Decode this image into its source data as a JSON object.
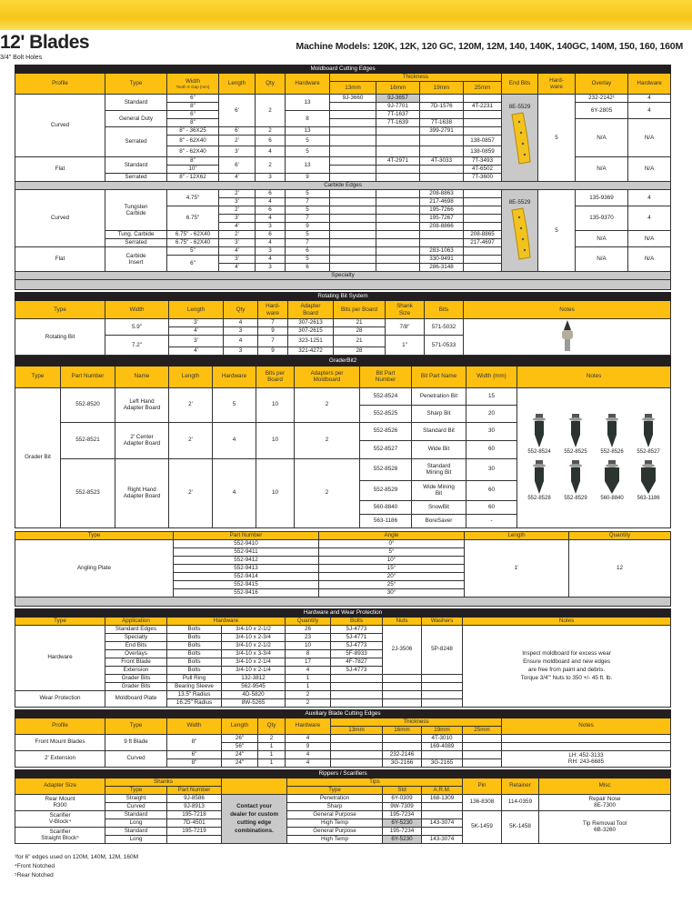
{
  "header": {
    "title": "12' Blades",
    "subtitle": "3/4\" Bolt Holes",
    "models": "Machine Models: 120K, 12K, 120 GC, 120M, 12M, 140, 140K, 140GC, 140M, 150, 160, 160M"
  },
  "colors": {
    "accent": "#fdc010",
    "bar": "#231f20",
    "band": "#c9c9c9"
  },
  "moldboard": {
    "title": "Moldboard Cutting Edges",
    "headers": [
      "Profile",
      "Type",
      "Width",
      "Tooth X Gap (mm)",
      "Length",
      "Qty",
      "Hardware",
      "Thickness",
      "13mm",
      "16mm",
      "19mm",
      "25mm",
      "End Bits",
      "Hard-\nware",
      "Overlay",
      "Hardware"
    ],
    "rows": [
      [
        "Curved",
        "Standard",
        "6\"",
        "6'",
        "2",
        "13",
        "9J-3660",
        "9J-3657",
        "",
        "",
        "8E-5529",
        "5",
        "232-2142¹",
        "4"
      ],
      [
        "8\"",
        "",
        "9J-7701",
        "7D-1576",
        "4T-2231",
        "6Y-2805",
        "4"
      ],
      [
        "General Duty",
        "6\"",
        "8",
        "",
        "7T-1637",
        "",
        ""
      ],
      [
        "8\"",
        "",
        "7T-1639",
        "7T-1638",
        "",
        "N/A",
        "N/A"
      ],
      [
        "Serrated",
        "8\" - 36X25",
        "6'",
        "2",
        "13",
        "",
        "",
        "399-2791",
        ""
      ],
      [
        "8\" - 62X40",
        "2'",
        "6",
        "5",
        "",
        "",
        "",
        "138-0857"
      ],
      [
        "8\" - 62X40",
        "3'",
        "4",
        "5",
        "",
        "",
        "",
        "138-0859"
      ],
      [
        "Flat",
        "Standard",
        "8\"",
        "6'",
        "2",
        "13",
        "",
        "4T-2971",
        "4T-3033",
        "7T-3493",
        "N/A",
        "N/A"
      ],
      [
        "10\"",
        "",
        "",
        "",
        "4T-6502"
      ],
      [
        "Serrated",
        "8\" - 12X62",
        "4'",
        "3",
        "9",
        "",
        "",
        "",
        "7T-3600"
      ]
    ]
  },
  "carbide": {
    "title": "Carbide Edges",
    "rows": [
      [
        "Curved",
        "Tungsten\nCarbide",
        "4.75\"",
        "2'",
        "6",
        "5",
        "",
        "",
        "208-8863",
        "",
        "8E-5529",
        "5",
        "135-9369",
        "4"
      ],
      [
        "3'",
        "4",
        "7",
        "",
        "",
        "217-4698",
        ""
      ],
      [
        "6.75\"",
        "2'",
        "6",
        "5",
        "",
        "",
        "195-7266",
        "",
        "135-9370",
        "4"
      ],
      [
        "3'",
        "4",
        "7",
        "",
        "",
        "195-7267",
        ""
      ],
      [
        "4'",
        "3",
        "9",
        "",
        "",
        "208-8866",
        ""
      ],
      [
        "Tung. Carbide",
        "6.75\" - 62X40",
        "2'",
        "6",
        "5",
        "",
        "",
        "",
        "208-8865",
        "N/A",
        "N/A"
      ],
      [
        "Serrated",
        "6.75\" - 62X40",
        "3'",
        "4",
        "7",
        "",
        "",
        "",
        "217-4697"
      ],
      [
        "Flat",
        "Carbide\nInsert",
        "5\"",
        "4'",
        "3",
        "6",
        "",
        "",
        "283-1063",
        "",
        "N/A",
        "N/A"
      ],
      [
        "6\"",
        "3'",
        "4",
        "5",
        "",
        "",
        "330-9491",
        ""
      ],
      [
        "4'",
        "3",
        "6",
        "",
        "",
        "286-3148",
        ""
      ]
    ],
    "specialty": "Specialty"
  },
  "rotating": {
    "title": "Rotating Bit System",
    "headers": [
      "Type",
      "Width",
      "Length",
      "Qty",
      "Hard-\nware",
      "Adapter\nBoard",
      "Bits per Board",
      "Shank\nSize",
      "Bits",
      "Notes"
    ],
    "rows": [
      [
        "Rotating Bit",
        "5.9\"",
        "3'",
        "4",
        "7",
        "307-2613",
        "21",
        "7/8\"",
        "571-5032"
      ],
      [
        "4'",
        "3",
        "9",
        "307-2615",
        "28"
      ],
      [
        "7.2\"",
        "3'",
        "4",
        "7",
        "323-1251",
        "21",
        "1\"",
        "571-0533"
      ],
      [
        "4'",
        "3",
        "9",
        "321-4272",
        "28"
      ]
    ]
  },
  "grader": {
    "title": "GraderBit2",
    "headers": [
      "Type",
      "Part Number",
      "Name",
      "Length",
      "Hardware",
      "Bits per\nBoard",
      "Adapters per\nMoldboard",
      "Bit Part\nNumber",
      "Bit Part Name",
      "Width (mm)",
      "Notes"
    ],
    "rows": [
      [
        "Grader Bit",
        "552-8520",
        "Left Hand\nAdapter Board",
        "2'",
        "5",
        "10",
        "2",
        "552-8524",
        "Penetration Bit",
        "15"
      ],
      [
        "552-8525",
        "Sharp Bit",
        "20"
      ],
      [
        "552-8521",
        "2' Center\nAdapter Board",
        "2'",
        "4",
        "10",
        "2",
        "552-8526",
        "Standard Bit",
        "30"
      ],
      [
        "552-8527",
        "Wide Bit",
        "60"
      ],
      [
        "552-8523",
        "Right Hand\nAdapter Board",
        "2'",
        "4",
        "10",
        "2",
        "552-8528",
        "Standard\nMining Bit",
        "30"
      ],
      [
        "552-8529",
        "Wide Mining\nBit",
        "60"
      ],
      [
        "560-8840",
        "SnowBit",
        "60"
      ],
      [
        "563-1186",
        "BoreSaver",
        "-"
      ]
    ],
    "bit_images": [
      "552-8524",
      "552-8525",
      "552-8526",
      "552-8527",
      "552-8528",
      "552-8529",
      "560-8840",
      "563-1186"
    ]
  },
  "angling": {
    "headers": [
      "Type",
      "Part Number",
      "Angle",
      "Length",
      "Quantity"
    ],
    "type": "Angling Plate",
    "length": "1'",
    "quantity": "12",
    "parts": [
      "552-9410",
      "552-9411",
      "552-9412",
      "552-9413",
      "552-9414",
      "552-9415",
      "552-9416"
    ],
    "angles": [
      "0°",
      "5°",
      "10°",
      "15°",
      "20°",
      "25°",
      "30°"
    ]
  },
  "hardware": {
    "title": "Hardware and Wear Protection",
    "headers": [
      "Type",
      "Application",
      "Hardware",
      "Quantity",
      "Bolts",
      "Nuts",
      "Washers",
      "Notes"
    ],
    "rows": [
      [
        "Hardware",
        "Standard Edges",
        "Bolts",
        "3/4-10 x 2-1/2",
        "26",
        "5J-4773",
        "2J-3506",
        "5P-8248"
      ],
      [
        "Specialty",
        "Bolts",
        "3/4-10 x 2-3/4",
        "23",
        "5J-4771"
      ],
      [
        "End Bits",
        "Bolts",
        "3/4-10 x 2-1/2",
        "10",
        "5J-4773"
      ],
      [
        "Overlays",
        "Bolts",
        "3/4-10 x 3-3/4",
        "8",
        "5F-8933"
      ],
      [
        "Front Blade",
        "Bolts",
        "3/4-10 x 2-1/4",
        "17",
        "4F-7827"
      ],
      [
        "Extension",
        "Bolts",
        "3/4-10 x 2-1/4",
        "4",
        "5J-4773"
      ],
      [
        "Grader Bits",
        "Pull Ring",
        "132-3812",
        "1",
        "",
        "",
        ""
      ],
      [
        "Grader Bits",
        "Bearing Sleeve",
        "562-9545",
        "1",
        "",
        "",
        ""
      ],
      [
        "Wear Protection",
        "Moldboard Plate",
        "13.5\" Radius",
        "4D-5820",
        "2",
        "",
        "",
        ""
      ],
      [
        "16.25\" Radius",
        "8W-5265",
        "2",
        "",
        "",
        ""
      ]
    ],
    "notes": "Inspect moldboard for excess wear\nEnsure moldboard and new edges\nare free from paint and debris.\nTorque 3/4\"' Nuts to 350 +/- 45 ft. lb."
  },
  "auxiliary": {
    "title": "Auxiliary Blade Cutting Edges",
    "headers": [
      "Profile",
      "Type",
      "Width",
      "Length",
      "Qty",
      "Hardware",
      "Thickness",
      "13mm",
      "16mm",
      "19mm",
      "25mm",
      "Notes"
    ],
    "rows": [
      [
        "Front Mount Blades",
        "9 ft Blade",
        "8\"",
        "26\"",
        "2",
        "4",
        "",
        "",
        "4T-3010",
        "",
        ""
      ],
      [
        "56\"",
        "1",
        "9",
        "",
        "",
        "169-4089",
        "",
        ""
      ],
      [
        "2' Extension",
        "Curved",
        "6\"",
        "24\"",
        "1",
        "4",
        "",
        "232-2146",
        "",
        "",
        "LH: 452-3133\nRH: 243-6685"
      ],
      [
        "8\"",
        "24\"",
        "1",
        "4",
        "",
        "3G-2166",
        "3G-2165",
        ""
      ]
    ]
  },
  "rippers": {
    "title": "Rippers / Scarifiers",
    "headers": [
      "Adapter Size",
      "Shanks",
      "Tips",
      "Pin",
      "Retainer",
      "Misc",
      "Type",
      "Part Number",
      "Type",
      "Std",
      "A.R.M."
    ],
    "rows": [
      [
        "Rear Mount\nR300",
        "Straight",
        "9J-8586",
        "Contact your\ndealer for custom\ncutting edge\ncombinations.",
        "Penetration",
        "6Y-0309",
        "168-1309",
        "136-8308",
        "114-0359",
        "Repair Nose\n8E-7300"
      ],
      [
        "Curved",
        "9J-8913",
        "Sharp",
        "9W-7309",
        ""
      ],
      [
        "Scarifier\nV-Block⁴",
        "Standard",
        "195-7218",
        "General Purpose",
        "195-7234",
        "",
        "5K-1459",
        "5K-1458",
        "Tip Removal Tool\n6B-3260"
      ],
      [
        "Long",
        "7D-4501",
        "High Temp",
        "6Y-5230",
        "143-3074"
      ],
      [
        "Scarifier\nStraight Block⁵",
        "Standard",
        "195-7219",
        "General Purpose",
        "195-7234",
        ""
      ],
      [
        "Long",
        "",
        "High Temp",
        "6Y-5230",
        "143-3074"
      ]
    ]
  },
  "footnotes": [
    "¹for 6\" edges used on 120M, 140M, 12M, 160M",
    "⁴Front Notched",
    "⁵Rear Notched"
  ]
}
